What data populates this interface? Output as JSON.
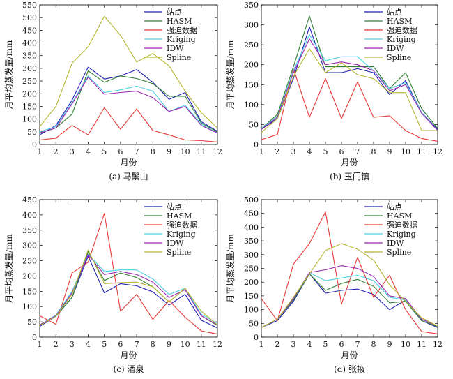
{
  "figure": {
    "colors": {
      "站点": "#1f1fb4",
      "HASM": "#2e7d32",
      "强迫数据": "#e53935",
      "Kriging": "#4dd0e1",
      "IDW": "#9c27b0",
      "Spline": "#b5b530"
    }
  },
  "chart_data": [
    {
      "type": "line",
      "title": "",
      "caption": "(a) 马鬃山",
      "xlabel": "月份",
      "ylabel": "月平均蒸发量/mm",
      "x": [
        1,
        2,
        3,
        4,
        5,
        6,
        7,
        8,
        9,
        10,
        11,
        12
      ],
      "xlim": [
        1,
        12
      ],
      "ylim": [
        0,
        550
      ],
      "yticks": [
        0,
        50,
        100,
        150,
        200,
        250,
        300,
        350,
        400,
        450,
        500,
        550
      ],
      "legend_position": "top-right",
      "series": [
        {
          "name": "站点",
          "values": [
            38,
            75,
            175,
            305,
            258,
            270,
            295,
            245,
            178,
            205,
            90,
            52
          ]
        },
        {
          "name": "HASM",
          "values": [
            45,
            65,
            120,
            290,
            245,
            270,
            260,
            240,
            190,
            190,
            85,
            50
          ]
        },
        {
          "name": "强迫数据",
          "values": [
            18,
            25,
            75,
            38,
            145,
            60,
            140,
            55,
            38,
            18,
            15,
            10
          ]
        },
        {
          "name": "Kriging",
          "values": [
            50,
            70,
            165,
            270,
            205,
            215,
            230,
            210,
            130,
            155,
            80,
            45
          ]
        },
        {
          "name": "IDW",
          "values": [
            45,
            65,
            160,
            265,
            198,
            205,
            210,
            185,
            130,
            150,
            75,
            45
          ]
        },
        {
          "name": "Spline",
          "values": [
            70,
            150,
            320,
            385,
            505,
            430,
            325,
            358,
            310,
            210,
            125,
            65
          ]
        }
      ]
    },
    {
      "type": "line",
      "title": "",
      "caption": "(b) 玉门镇",
      "xlabel": "月份",
      "ylabel": "月平均蒸发量/mm",
      "x": [
        1,
        2,
        3,
        4,
        5,
        6,
        7,
        8,
        9,
        10,
        11,
        12
      ],
      "xlim": [
        1,
        12
      ],
      "ylim": [
        0,
        350
      ],
      "yticks": [
        0,
        50,
        100,
        150,
        200,
        250,
        300,
        350
      ],
      "legend_position": "top-right",
      "series": [
        {
          "name": "站点",
          "values": [
            38,
            65,
            165,
            295,
            180,
            180,
            190,
            180,
            125,
            160,
            80,
            38
          ]
        },
        {
          "name": "HASM",
          "values": [
            40,
            75,
            195,
            322,
            195,
            195,
            195,
            195,
            140,
            180,
            90,
            40
          ]
        },
        {
          "name": "强迫数据",
          "values": [
            12,
            25,
            190,
            68,
            165,
            65,
            157,
            68,
            72,
            35,
            15,
            8
          ]
        },
        {
          "name": "Kriging",
          "values": [
            40,
            70,
            185,
            275,
            210,
            220,
            220,
            185,
            140,
            155,
            80,
            35
          ]
        },
        {
          "name": "IDW",
          "values": [
            38,
            68,
            180,
            265,
            200,
            207,
            200,
            185,
            135,
            150,
            78,
            35
          ]
        },
        {
          "name": "Spline",
          "values": [
            30,
            65,
            170,
            240,
            180,
            205,
            175,
            165,
            130,
            130,
            35,
            35
          ]
        }
      ]
    },
    {
      "type": "line",
      "title": "",
      "caption": "(c) 酒泉",
      "xlabel": "月份",
      "ylabel": "月平均蒸发量/mm",
      "x": [
        1,
        2,
        3,
        4,
        5,
        6,
        7,
        8,
        9,
        10,
        11,
        12
      ],
      "xlim": [
        1,
        12
      ],
      "ylim": [
        0,
        450
      ],
      "yticks": [
        0,
        50,
        100,
        150,
        200,
        250,
        300,
        350,
        400,
        450
      ],
      "legend_position": "top-right",
      "series": [
        {
          "name": "站点",
          "values": [
            35,
            68,
            130,
            265,
            145,
            175,
            168,
            148,
            105,
            140,
            55,
            30
          ]
        },
        {
          "name": "HASM",
          "values": [
            40,
            68,
            130,
            280,
            185,
            210,
            195,
            165,
            115,
            160,
            70,
            38
          ]
        },
        {
          "name": "强迫数据",
          "values": [
            70,
            42,
            210,
            245,
            405,
            85,
            140,
            58,
            120,
            65,
            20,
            10
          ]
        },
        {
          "name": "Kriging",
          "values": [
            40,
            72,
            150,
            272,
            215,
            220,
            220,
            190,
            140,
            160,
            75,
            45
          ]
        },
        {
          "name": "IDW",
          "values": [
            40,
            70,
            145,
            270,
            205,
            215,
            205,
            180,
            130,
            155,
            70,
            40
          ]
        },
        {
          "name": "Spline",
          "values": [
            38,
            68,
            140,
            285,
            175,
            178,
            180,
            165,
            115,
            160,
            85,
            40
          ]
        }
      ]
    },
    {
      "type": "line",
      "title": "",
      "caption": "(d) 张掖",
      "xlabel": "月份",
      "ylabel": "月平均蒸发量/mm",
      "x": [
        1,
        2,
        3,
        4,
        5,
        6,
        7,
        8,
        9,
        10,
        11,
        12
      ],
      "xlim": [
        1,
        12
      ],
      "ylim": [
        0,
        500
      ],
      "yticks": [
        0,
        50,
        100,
        150,
        200,
        250,
        300,
        350,
        400,
        450,
        500
      ],
      "legend_position": "top-right",
      "series": [
        {
          "name": "站点",
          "values": [
            35,
            60,
            130,
            230,
            160,
            170,
            175,
            155,
            100,
            135,
            60,
            35
          ]
        },
        {
          "name": "HASM",
          "values": [
            35,
            65,
            135,
            230,
            170,
            195,
            210,
            185,
            125,
            130,
            60,
            38
          ]
        },
        {
          "name": "强迫数据",
          "values": [
            140,
            60,
            265,
            340,
            455,
            120,
            290,
            145,
            225,
            100,
            20,
            12
          ]
        },
        {
          "name": "Kriging",
          "values": [
            35,
            65,
            140,
            235,
            205,
            215,
            225,
            205,
            145,
            135,
            65,
            40
          ]
        },
        {
          "name": "IDW",
          "values": [
            35,
            65,
            140,
            235,
            245,
            260,
            250,
            220,
            150,
            140,
            65,
            40
          ]
        },
        {
          "name": "Spline",
          "values": [
            35,
            65,
            145,
            230,
            315,
            340,
            320,
            280,
            190,
            130,
            70,
            40
          ]
        }
      ]
    }
  ]
}
